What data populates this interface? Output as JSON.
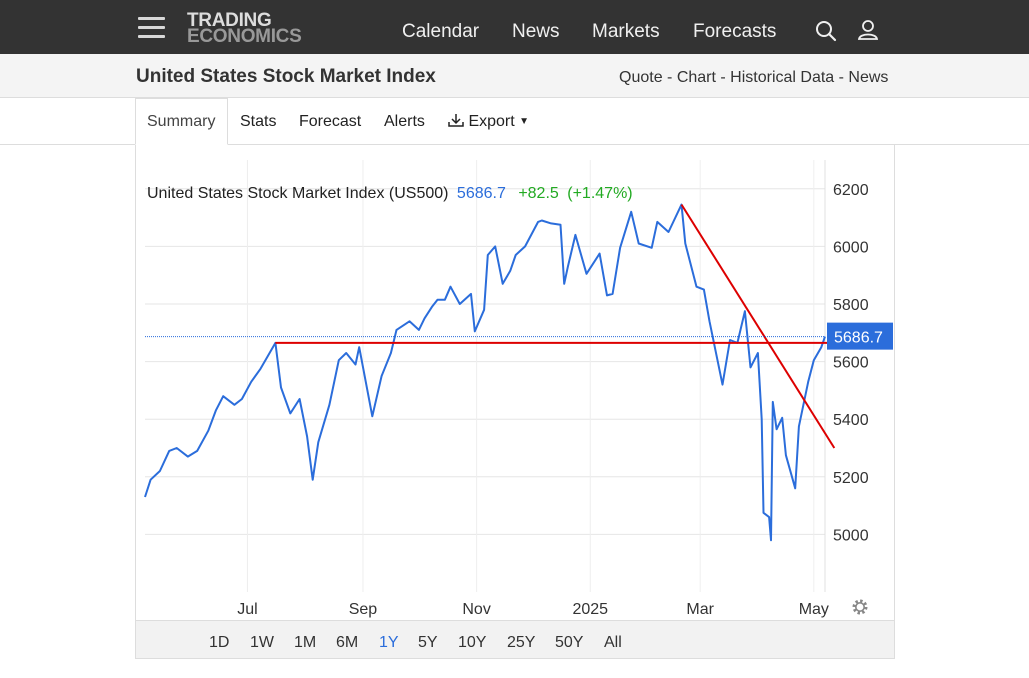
{
  "nav": {
    "logo_line1": "TRADING",
    "logo_line2": "ECONOMICS",
    "links": [
      "Calendar",
      "News",
      "Markets",
      "Forecasts"
    ]
  },
  "header": {
    "title": "United States Stock Market Index",
    "quicklinks": [
      "Quote",
      "Chart",
      "Historical Data",
      "News"
    ]
  },
  "tabs": [
    "Summary",
    "Stats",
    "Forecast",
    "Alerts",
    "Export"
  ],
  "ranges": {
    "options": [
      "1D",
      "1W",
      "1M",
      "6M",
      "1Y",
      "5Y",
      "10Y",
      "25Y",
      "50Y",
      "All"
    ],
    "selected": "1Y"
  },
  "colors": {
    "line": "#2b6ddb",
    "trend": "#dd0000",
    "positive": "#22aa22",
    "accent": "#2b6ddb",
    "topbar": "#333333"
  },
  "chart_data": {
    "type": "line",
    "legend": {
      "name": "United States Stock Market Index (US500)",
      "value": "5686.7",
      "change": "+82.5",
      "pct": "(+1.47%)"
    },
    "last_value_label": "5686.7",
    "last_value": 5686.7,
    "ylim": [
      4800,
      6300
    ],
    "yticks": [
      5000,
      5200,
      5400,
      5600,
      5800,
      6000,
      6200
    ],
    "xlim": [
      "2024-05-07",
      "2025-05-07"
    ],
    "xticks": [
      {
        "label": "Jul",
        "date": "2024-07-01"
      },
      {
        "label": "Sep",
        "date": "2024-09-01"
      },
      {
        "label": "Nov",
        "date": "2024-11-01"
      },
      {
        "label": "2025",
        "date": "2025-01-01"
      },
      {
        "label": "Mar",
        "date": "2025-03-01"
      },
      {
        "label": "May",
        "date": "2025-05-01"
      }
    ],
    "grid": true,
    "series": [
      {
        "values": [
          [
            "2024-05-07",
            5130
          ],
          [
            "2024-05-10",
            5190
          ],
          [
            "2024-05-15",
            5220
          ],
          [
            "2024-05-20",
            5290
          ],
          [
            "2024-05-24",
            5300
          ],
          [
            "2024-05-30",
            5270
          ],
          [
            "2024-06-04",
            5290
          ],
          [
            "2024-06-10",
            5360
          ],
          [
            "2024-06-14",
            5430
          ],
          [
            "2024-06-18",
            5480
          ],
          [
            "2024-06-24",
            5450
          ],
          [
            "2024-06-28",
            5470
          ],
          [
            "2024-07-03",
            5530
          ],
          [
            "2024-07-08",
            5575
          ],
          [
            "2024-07-12",
            5620
          ],
          [
            "2024-07-16",
            5665
          ],
          [
            "2024-07-19",
            5510
          ],
          [
            "2024-07-24",
            5420
          ],
          [
            "2024-07-29",
            5470
          ],
          [
            "2024-08-02",
            5340
          ],
          [
            "2024-08-05",
            5190
          ],
          [
            "2024-08-08",
            5320
          ],
          [
            "2024-08-14",
            5450
          ],
          [
            "2024-08-19",
            5605
          ],
          [
            "2024-08-23",
            5630
          ],
          [
            "2024-08-28",
            5590
          ],
          [
            "2024-08-30",
            5650
          ],
          [
            "2024-09-06",
            5410
          ],
          [
            "2024-09-11",
            5550
          ],
          [
            "2024-09-16",
            5630
          ],
          [
            "2024-09-19",
            5710
          ],
          [
            "2024-09-26",
            5740
          ],
          [
            "2024-10-01",
            5710
          ],
          [
            "2024-10-04",
            5750
          ],
          [
            "2024-10-08",
            5790
          ],
          [
            "2024-10-11",
            5815
          ],
          [
            "2024-10-15",
            5815
          ],
          [
            "2024-10-18",
            5860
          ],
          [
            "2024-10-23",
            5800
          ],
          [
            "2024-10-29",
            5835
          ],
          [
            "2024-10-31",
            5705
          ],
          [
            "2024-11-05",
            5780
          ],
          [
            "2024-11-07",
            5970
          ],
          [
            "2024-11-11",
            6000
          ],
          [
            "2024-11-15",
            5870
          ],
          [
            "2024-11-19",
            5915
          ],
          [
            "2024-11-22",
            5970
          ],
          [
            "2024-11-27",
            6000
          ],
          [
            "2024-12-04",
            6085
          ],
          [
            "2024-12-06",
            6090
          ],
          [
            "2024-12-11",
            6080
          ],
          [
            "2024-12-16",
            6075
          ],
          [
            "2024-12-18",
            5870
          ],
          [
            "2024-12-20",
            5930
          ],
          [
            "2024-12-24",
            6040
          ],
          [
            "2024-12-30",
            5905
          ],
          [
            "2025-01-06",
            5975
          ],
          [
            "2025-01-10",
            5830
          ],
          [
            "2025-01-13",
            5835
          ],
          [
            "2025-01-17",
            5995
          ],
          [
            "2025-01-23",
            6120
          ],
          [
            "2025-01-27",
            6010
          ],
          [
            "2025-02-03",
            5995
          ],
          [
            "2025-02-06",
            6085
          ],
          [
            "2025-02-12",
            6050
          ],
          [
            "2025-02-19",
            6145
          ],
          [
            "2025-02-21",
            6010
          ],
          [
            "2025-02-27",
            5860
          ],
          [
            "2025-03-03",
            5850
          ],
          [
            "2025-03-06",
            5740
          ],
          [
            "2025-03-10",
            5615
          ],
          [
            "2025-03-13",
            5520
          ],
          [
            "2025-03-17",
            5675
          ],
          [
            "2025-03-21",
            5665
          ],
          [
            "2025-03-25",
            5775
          ],
          [
            "2025-03-28",
            5580
          ],
          [
            "2025-04-01",
            5630
          ],
          [
            "2025-04-03",
            5400
          ],
          [
            "2025-04-04",
            5075
          ],
          [
            "2025-04-07",
            5060
          ],
          [
            "2025-04-08",
            4980
          ],
          [
            "2025-04-09",
            5460
          ],
          [
            "2025-04-11",
            5365
          ],
          [
            "2025-04-14",
            5405
          ],
          [
            "2025-04-16",
            5275
          ],
          [
            "2025-04-21",
            5160
          ],
          [
            "2025-04-23",
            5375
          ],
          [
            "2025-04-28",
            5530
          ],
          [
            "2025-05-01",
            5605
          ],
          [
            "2025-05-05",
            5650
          ],
          [
            "2025-05-07",
            5686.7
          ]
        ]
      }
    ],
    "trendlines": [
      {
        "from": [
          "2024-07-16",
          5665
        ],
        "to": [
          "2025-05-12",
          5665
        ]
      },
      {
        "from": [
          "2025-02-19",
          6145
        ],
        "to": [
          "2025-05-12",
          5300
        ]
      }
    ]
  }
}
